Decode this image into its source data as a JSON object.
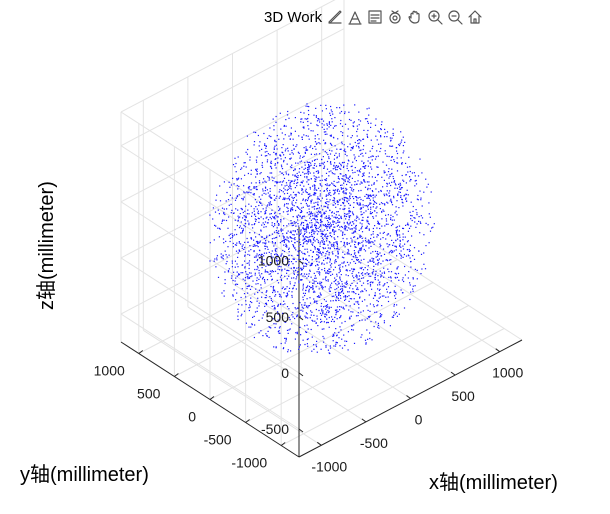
{
  "toolbar": {
    "title": "3D Work",
    "buttons": [
      {
        "name": "brush-icon"
      },
      {
        "name": "datatip-icon"
      },
      {
        "name": "legend-icon"
      },
      {
        "name": "rotate-3d-icon"
      },
      {
        "name": "pan-hand-icon"
      },
      {
        "name": "zoom-in-icon"
      },
      {
        "name": "zoom-out-icon"
      },
      {
        "name": "home-icon"
      }
    ]
  },
  "chart_data": {
    "type": "scatter",
    "title": "",
    "xlabel": "x轴(millimeter)",
    "ylabel": "y轴(millimeter)",
    "zlabel": "z轴(millimeter)",
    "xlim": [
      -1250,
      1250
    ],
    "ylim": [
      -1250,
      1250
    ],
    "zlim": [
      -750,
      1300
    ],
    "xticks": [
      -1000,
      -500,
      0,
      500,
      1000
    ],
    "yticks": [
      -1000,
      -500,
      0,
      500,
      1000
    ],
    "zticks": [
      -500,
      0,
      500,
      1000
    ],
    "xtick_labels": [
      "-1000",
      "-500",
      "0",
      "500",
      "1000"
    ],
    "ytick_labels": [
      "-1000",
      "-500",
      "0",
      "500",
      "1000"
    ],
    "ztick_labels": [
      "-500",
      "0",
      "500",
      "1000"
    ],
    "grid": true,
    "marker_color": "#1a1aff",
    "point_count": 3600,
    "distribution": {
      "shape": "sphere",
      "center": [
        0,
        0,
        250
      ],
      "radius": 1000,
      "note": "points distributed inside and on an approx. sphere of radius 1000 centred at z=250"
    }
  }
}
